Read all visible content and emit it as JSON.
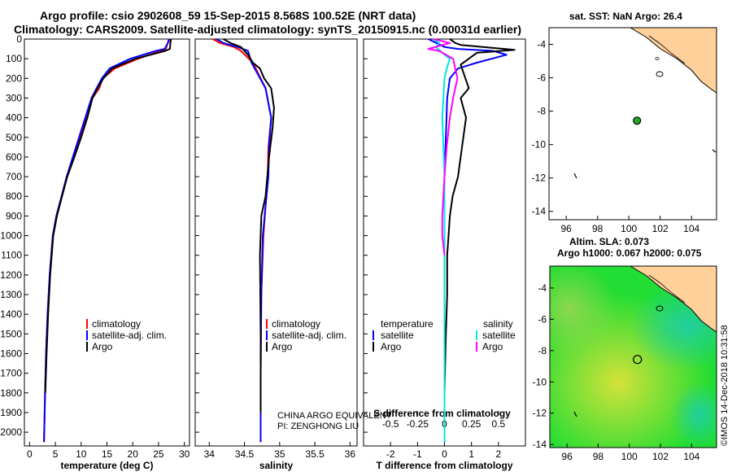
{
  "header": {
    "title_line1": "Argo profile: csio 2902608_59 15-Sep-2015 8.568S 100.52E (NRT data)",
    "title_line2": "Climatology: CARS2009. Satellite-adjusted climatology: synTS_20150915.nc (0.00031d earlier)"
  },
  "map_top": {
    "title": "sat. SST: NaN Argo: 26.4"
  },
  "map_bottom": {
    "title1": "Altim. SLA: 0.073",
    "title2": "Argo h1000: 0.067 h2000: 0.075"
  },
  "maps": {
    "xticks": [
      "96",
      "98",
      "100",
      "102",
      "104"
    ],
    "yticks": [
      "-4",
      "-6",
      "-8",
      "-10",
      "-12",
      "-14"
    ],
    "float_lon": 100.52,
    "float_lat": -8.568
  },
  "notes": {
    "equivalent": "CHINA ARGO EQUIVALENT",
    "pi": "PI: ZENGHONG LIU"
  },
  "watermark": "©IMOS 14-Dec-2018 10:31:58",
  "colors": {
    "climatology": "#ff0000",
    "satellite": "#0000ff",
    "argo": "#000000",
    "t_satellite": "#0000ff",
    "s_satellite": "#00e5e5",
    "s_argo": "#ff00ff",
    "land": "#ffd09a",
    "marker": "#22aa22"
  },
  "chart_data": [
    {
      "type": "line",
      "title": "",
      "xlabel": "temperature (deg C)",
      "ylabel": "",
      "xlim": [
        -1,
        31
      ],
      "ylim": [
        2070,
        0
      ],
      "xticks": [
        0,
        5,
        10,
        15,
        20,
        25,
        30
      ],
      "yticks": [
        0,
        100,
        200,
        300,
        400,
        500,
        600,
        700,
        800,
        900,
        1000,
        1100,
        1200,
        1300,
        1400,
        1500,
        1600,
        1700,
        1800,
        1900,
        2000
      ],
      "legend": [
        "climatology",
        "satellite-adj. clim.",
        "Argo"
      ],
      "series": [
        {
          "name": "climatology",
          "color": "climatology",
          "x": [
            27.2,
            26.8,
            26.4,
            25.5,
            21,
            16.5,
            14.2,
            13.5,
            12.2,
            11,
            9.8,
            8.5,
            7.2,
            6.2,
            5.2,
            4.5,
            3.9,
            3.5,
            3.2,
            3,
            2.8
          ],
          "y": [
            0,
            20,
            50,
            60,
            100,
            150,
            200,
            250,
            300,
            400,
            500,
            600,
            700,
            800,
            900,
            1000,
            1200,
            1400,
            1600,
            1800,
            2050
          ]
        },
        {
          "name": "satellite-adj. clim.",
          "color": "satellite",
          "x": [
            27,
            26.8,
            26.2,
            24.5,
            19.5,
            15.5,
            14,
            13,
            12,
            10.8,
            9.6,
            8.4,
            7.2,
            6.2,
            5.2,
            4.5,
            3.9,
            3.5,
            3.2,
            3,
            2.8
          ],
          "y": [
            0,
            20,
            50,
            60,
            100,
            150,
            200,
            250,
            300,
            400,
            500,
            600,
            700,
            800,
            900,
            1000,
            1200,
            1400,
            1600,
            1800,
            2050
          ]
        },
        {
          "name": "Argo",
          "color": "argo",
          "x": [
            27.4,
            27.3,
            27.2,
            26.3,
            20.5,
            16,
            14.3,
            13.2,
            12.2,
            11.2,
            10,
            8.7,
            7.3,
            6.3,
            5.3,
            4.6,
            4,
            3.6,
            3.3,
            3.05
          ],
          "y": [
            0,
            20,
            50,
            60,
            100,
            150,
            200,
            250,
            300,
            400,
            500,
            600,
            700,
            800,
            900,
            1000,
            1200,
            1400,
            1600,
            1800
          ]
        }
      ]
    },
    {
      "type": "line",
      "title": "",
      "xlabel": "salinity",
      "ylabel": "",
      "xlim": [
        33.8,
        36.1
      ],
      "ylim": [
        2070,
        0
      ],
      "xticks": [
        34,
        34.5,
        35,
        35.5,
        36
      ],
      "xticklabels": [
        "34",
        "34.5",
        "35",
        "35.5",
        "36"
      ],
      "legend": [
        "climatology",
        "satellite-adj. clim.",
        "Argo"
      ],
      "series": [
        {
          "name": "climatology",
          "color": "climatology",
          "x": [
            34.05,
            34.15,
            34.35,
            34.45,
            34.62,
            34.8,
            34.88,
            34.84,
            34.83,
            34.8,
            34.77,
            34.74,
            34.73,
            34.73
          ],
          "y": [
            0,
            20,
            40,
            60,
            120,
            250,
            400,
            550,
            700,
            850,
            1000,
            1300,
            1700,
            2050
          ]
        },
        {
          "name": "satellite-adj. clim.",
          "color": "satellite",
          "x": [
            34.1,
            34.2,
            34.4,
            34.55,
            34.6,
            34.8,
            34.88,
            34.85,
            34.84,
            34.8,
            34.76,
            34.74,
            34.73,
            34.73
          ],
          "y": [
            0,
            20,
            40,
            60,
            120,
            250,
            400,
            550,
            700,
            850,
            1000,
            1300,
            1700,
            2050
          ]
        },
        {
          "name": "Argo",
          "color": "argo",
          "x": [
            34.2,
            34.3,
            34.45,
            34.55,
            34.62,
            34.72,
            34.78,
            34.88,
            34.92,
            34.9,
            34.85,
            34.8,
            34.74,
            34.72,
            34.73,
            34.73
          ],
          "y": [
            0,
            20,
            40,
            80,
            120,
            150,
            200,
            250,
            350,
            450,
            600,
            800,
            900,
            1100,
            1500,
            1900
          ]
        }
      ]
    },
    {
      "type": "line",
      "title": "",
      "xlabel": "T difference from climatology",
      "xlim": [
        -3,
        3
      ],
      "ylim": [
        2070,
        0
      ],
      "xticks": [
        -2,
        -1,
        0,
        1,
        2
      ],
      "top_label": "S difference from climatology",
      "top_ticks": [
        -0.5,
        -0.25,
        0,
        0.25,
        0.5
      ],
      "top_ticklabels": [
        "-0.5",
        "-0.25",
        "0",
        "0.25",
        "0.5"
      ],
      "legend_left": {
        "heading": "temperature",
        "items": [
          "satellite",
          "Argo"
        ]
      },
      "legend_right": {
        "heading": "salinity",
        "items": [
          "satellite",
          "Argo"
        ]
      },
      "series": [
        {
          "name": "T satellite",
          "color": "t_satellite",
          "axis": "T",
          "x": [
            -0.6,
            -0.3,
            0,
            0.5,
            1.8,
            2.3,
            1.2,
            0.5,
            0.2,
            0.1,
            0.05,
            0,
            0,
            0
          ],
          "y": [
            0,
            20,
            40,
            50,
            60,
            80,
            120,
            150,
            200,
            300,
            500,
            700,
            1000,
            2050
          ]
        },
        {
          "name": "T Argo",
          "color": "argo",
          "axis": "T",
          "x": [
            0.2,
            0.4,
            0.6,
            1.8,
            2.6,
            1.2,
            0.6,
            0.9,
            0.6,
            0.8,
            0.7,
            0.6,
            0.5,
            0.3,
            0.2,
            0.15,
            0.1,
            0.1,
            0.05,
            0
          ],
          "y": [
            0,
            20,
            30,
            45,
            55,
            70,
            130,
            250,
            300,
            400,
            500,
            600,
            700,
            800,
            900,
            1000,
            1100,
            1300,
            1500,
            1800
          ]
        },
        {
          "name": "S satellite",
          "color": "s_satellite",
          "axis": "S",
          "x": [
            -0.1,
            -0.05,
            -0.08,
            0,
            0.05,
            0.02,
            0,
            -0.02,
            0,
            0,
            0
          ],
          "y": [
            0,
            20,
            40,
            80,
            100,
            150,
            200,
            400,
            700,
            1100,
            2050
          ]
        },
        {
          "name": "S Argo",
          "color": "s_argo",
          "axis": "S",
          "x": [
            -0.1,
            0.05,
            -0.15,
            -0.05,
            0.08,
            0.12,
            0.08,
            0.05,
            0.02,
            0,
            -0.02,
            -0.02,
            0
          ],
          "y": [
            0,
            20,
            50,
            60,
            100,
            200,
            300,
            400,
            550,
            700,
            900,
            1000,
            1100
          ]
        }
      ]
    }
  ]
}
